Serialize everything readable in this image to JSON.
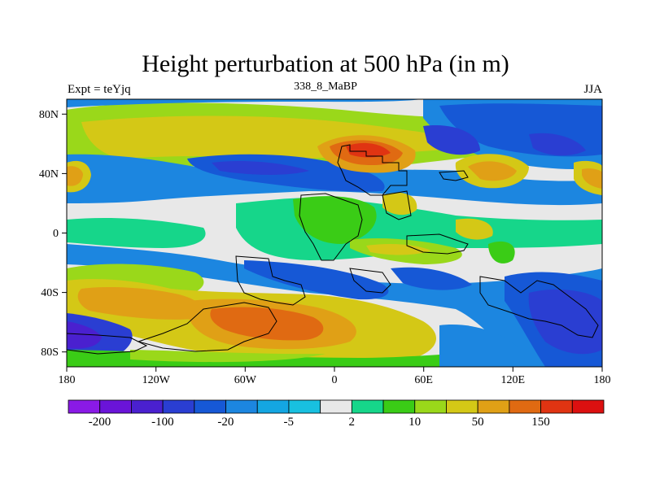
{
  "header": {
    "title": "Height perturbation at 500 hPa (in m)",
    "left_label": "Expt = teYjq",
    "center_label": "338_8_MaBP",
    "right_label": "JJA"
  },
  "map": {
    "lon_ticks": [
      "180",
      "120W",
      "60W",
      "0",
      "60E",
      "120E",
      "180"
    ],
    "lat_ticks": [
      "80N",
      "40N",
      "0",
      "40S",
      "80S"
    ]
  },
  "colorbar": {
    "colors": [
      "#8a1ae6",
      "#6a14d8",
      "#4a20cf",
      "#2a3ed2",
      "#1658d6",
      "#1c86e0",
      "#14a6e2",
      "#18c0e0",
      "#e8e8e8",
      "#16d68a",
      "#3acc16",
      "#9ad81a",
      "#d4c816",
      "#e0a016",
      "#e06a12",
      "#e03412",
      "#dc1010"
    ],
    "labels": [
      "-200",
      "-100",
      "-20",
      "-5",
      "2",
      "10",
      "50",
      "150"
    ]
  }
}
